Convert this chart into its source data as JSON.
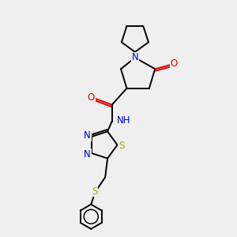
{
  "background_color": "#efefef",
  "bond_color": "#000000",
  "N_color": "#0000cc",
  "O_color": "#dd0000",
  "S_color": "#aaaa00",
  "H_color": "#008080",
  "font_size": 8.5,
  "lw": 1.4,
  "xlim": [
    0,
    10
  ],
  "ylim": [
    0,
    10
  ]
}
